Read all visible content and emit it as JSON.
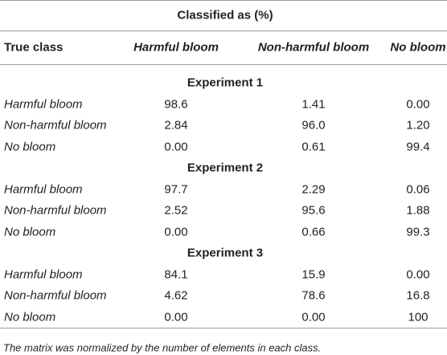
{
  "table": {
    "super_header": "Classified as (%)",
    "columns": [
      "True class",
      "Harmful bloom",
      "Non-harmful bloom",
      "No bloom"
    ],
    "sections": [
      {
        "title": "Experiment 1",
        "rows": [
          [
            "Harmful bloom",
            "98.6",
            "1.41",
            "0.00"
          ],
          [
            "Non-harmful bloom",
            "2.84",
            "96.0",
            "1.20"
          ],
          [
            "No bloom",
            "0.00",
            "0.61",
            "99.4"
          ]
        ]
      },
      {
        "title": "Experiment 2",
        "rows": [
          [
            "Harmful bloom",
            "97.7",
            "2.29",
            "0.06"
          ],
          [
            "Non-harmful bloom",
            "2.52",
            "95.6",
            "1.88"
          ],
          [
            "No bloom",
            "0.00",
            "0.66",
            "99.3"
          ]
        ]
      },
      {
        "title": "Experiment 3",
        "rows": [
          [
            "Harmful bloom",
            "84.1",
            "15.9",
            "0.00"
          ],
          [
            "Non-harmful bloom",
            "4.62",
            "78.6",
            "16.8"
          ],
          [
            "No bloom",
            "0.00",
            "0.00",
            "100"
          ]
        ]
      }
    ],
    "footnote": "The matrix was normalized by the number of elements in each class."
  }
}
